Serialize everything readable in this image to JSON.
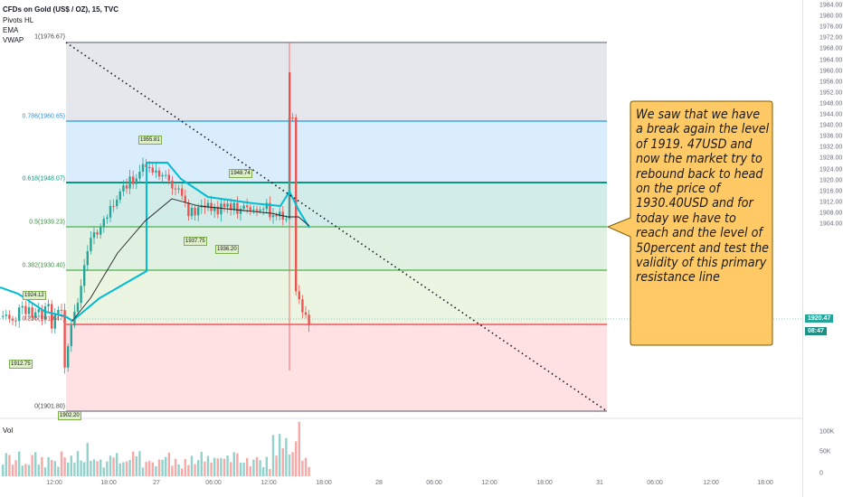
{
  "header": {
    "symbol": "CFDs on Gold (US$ / OZ), 15, TVC",
    "indicators": [
      "Pivots HL",
      "EMA",
      "VWAP"
    ],
    "volume_label": "Vol"
  },
  "price_axis": {
    "ticks": [
      "1984.00",
      "1980.00",
      "1976.00",
      "1972.00",
      "1968.00",
      "1964.00",
      "1960.00",
      "1956.00",
      "1952.00",
      "1948.00",
      "1944.00",
      "1940.00",
      "1936.00",
      "1932.00",
      "1928.00",
      "1924.00",
      "1920.00",
      "1916.00",
      "1912.00",
      "1908.00",
      "1904.00"
    ],
    "current_price": "1920.47",
    "countdown": "08:47"
  },
  "volume_axis": {
    "ticks": [
      "100K",
      "50K",
      "0"
    ]
  },
  "time_axis": {
    "ticks": [
      "12:00",
      "18:00",
      "27",
      "06:00",
      "12:00",
      "18:00",
      "28",
      "06:00",
      "12:00",
      "18:00",
      "31",
      "06:00",
      "12:00",
      "18:00"
    ]
  },
  "fib_levels": [
    {
      "label": "1(1976.67)",
      "color": "#787b86"
    },
    {
      "label": "0.786(1960.65)",
      "color": "#2196f3"
    },
    {
      "label": "0.618(1948.07)",
      "color": "#089981"
    },
    {
      "label": "0.5(1939.23)",
      "color": "#4caf50"
    },
    {
      "label": "0.382(1930.40)",
      "color": "#4caf50"
    },
    {
      "label": "0.236(1919.47)",
      "color": "#f23645"
    },
    {
      "label": "0(1901.80)",
      "color": "#787b86"
    }
  ],
  "pivots": [
    "1955.81",
    "1948.74",
    "1937.75",
    "1936.20",
    "1924.12",
    "1912.75",
    "1902.20"
  ],
  "callout": {
    "text": "We saw that we have a break again the level of 1919. 47USD and now the market try to rebound back to head on the price of 1930.40USD and for today we have to reach and the level of 50percent  and test the validity of this primary resistance line"
  },
  "colors": {
    "up": "#26a69a",
    "down": "#ef5350",
    "vwap": "#00bcd4",
    "ema": "#000000",
    "callout_fill": "#ffc966",
    "callout_border": "#7a5a00"
  },
  "chart_data": {
    "type": "candlestick",
    "instrument": "CFDs on Gold (US$ / OZ)",
    "interval": "15",
    "ylim": [
      1900,
      1986
    ],
    "fib_retracement": [
      {
        "ratio": 1,
        "price": 1976.67
      },
      {
        "ratio": 0.786,
        "price": 1960.65
      },
      {
        "ratio": 0.618,
        "price": 1948.07
      },
      {
        "ratio": 0.5,
        "price": 1939.23
      },
      {
        "ratio": 0.382,
        "price": 1930.4
      },
      {
        "ratio": 0.236,
        "price": 1919.47
      },
      {
        "ratio": 0,
        "price": 1901.8
      }
    ],
    "last_price": 1920.47
  }
}
